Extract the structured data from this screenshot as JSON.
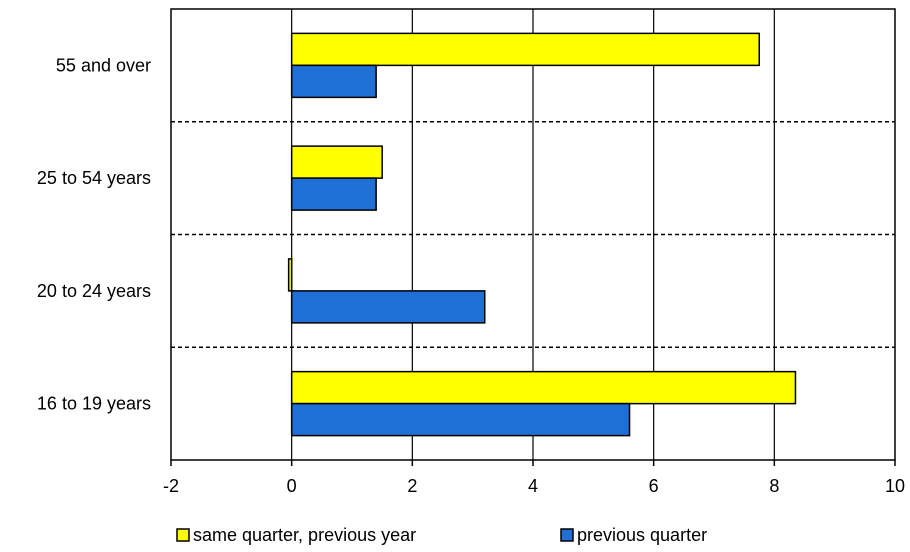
{
  "chart_data": {
    "type": "bar",
    "orientation": "horizontal",
    "categories": [
      "16 to 19 years",
      "20 to 24 years",
      "25 to 54 years",
      "55 and over"
    ],
    "series": [
      {
        "name": "same quarter, previous year",
        "color": "#ffff00",
        "values": [
          8.35,
          -0.05,
          1.5,
          7.75
        ]
      },
      {
        "name": "previous quarter",
        "color": "#1f6fd6",
        "values": [
          5.6,
          3.2,
          1.4,
          1.4
        ]
      }
    ],
    "xlim": [
      -2,
      10
    ],
    "xticks": [
      "-2",
      "0",
      "2",
      "4",
      "6",
      "8",
      "10"
    ],
    "grid": "vertical solid gridlines, dashed category separators",
    "legend": "bottom"
  }
}
